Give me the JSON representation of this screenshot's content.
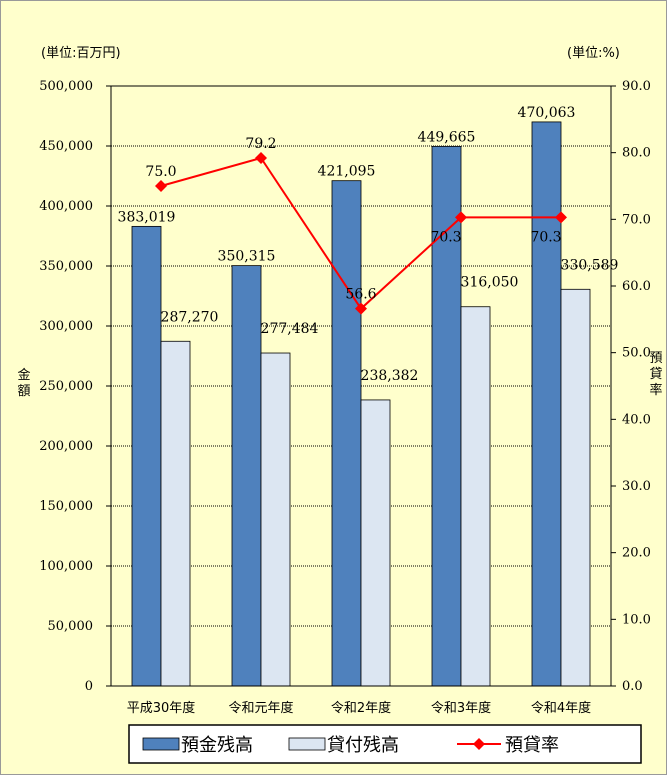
{
  "chart_data": {
    "type": "bar",
    "categories": [
      "平成30年度",
      "令和元年度",
      "令和2年度",
      "令和3年度",
      "令和4年度"
    ],
    "series": [
      {
        "name": "預金残高",
        "kind": "bar",
        "axis": "left",
        "color": "#4F81BD",
        "values": [
          383019,
          350315,
          421095,
          449665,
          470063
        ],
        "labels": [
          "383,019",
          "350,315",
          "421,095",
          "449,665",
          "470,063"
        ]
      },
      {
        "name": "貸付残高",
        "kind": "bar",
        "axis": "left",
        "color": "#DCE6F2",
        "values": [
          287270,
          277484,
          238382,
          316050,
          330589
        ],
        "labels": [
          "287,270",
          "277,484",
          "238,382",
          "316,050",
          "330,589"
        ]
      },
      {
        "name": "預貸率",
        "kind": "line",
        "axis": "right",
        "color": "#FF0000",
        "values": [
          75.0,
          79.2,
          56.6,
          70.3,
          70.3
        ],
        "labels": [
          "75.0",
          "79.2",
          "56.6",
          "70.3",
          "70.3"
        ]
      }
    ],
    "left_axis": {
      "title": "金額",
      "unit_label": "(単位:百万円)",
      "ylim": [
        0,
        500000
      ],
      "ticks": [
        "0",
        "50,000",
        "100,000",
        "150,000",
        "200,000",
        "250,000",
        "300,000",
        "350,000",
        "400,000",
        "450,000",
        "500,000"
      ]
    },
    "right_axis": {
      "title": "預貸率",
      "unit_label": "(単位:%)",
      "ylim": [
        0,
        90
      ],
      "ticks": [
        "0.0",
        "10.0",
        "20.0",
        "30.0",
        "40.0",
        "50.0",
        "60.0",
        "70.0",
        "80.0",
        "90.0"
      ]
    },
    "grid": "horizontal dotted",
    "legend_position": "bottom",
    "background_color": "#FFFFCC"
  }
}
